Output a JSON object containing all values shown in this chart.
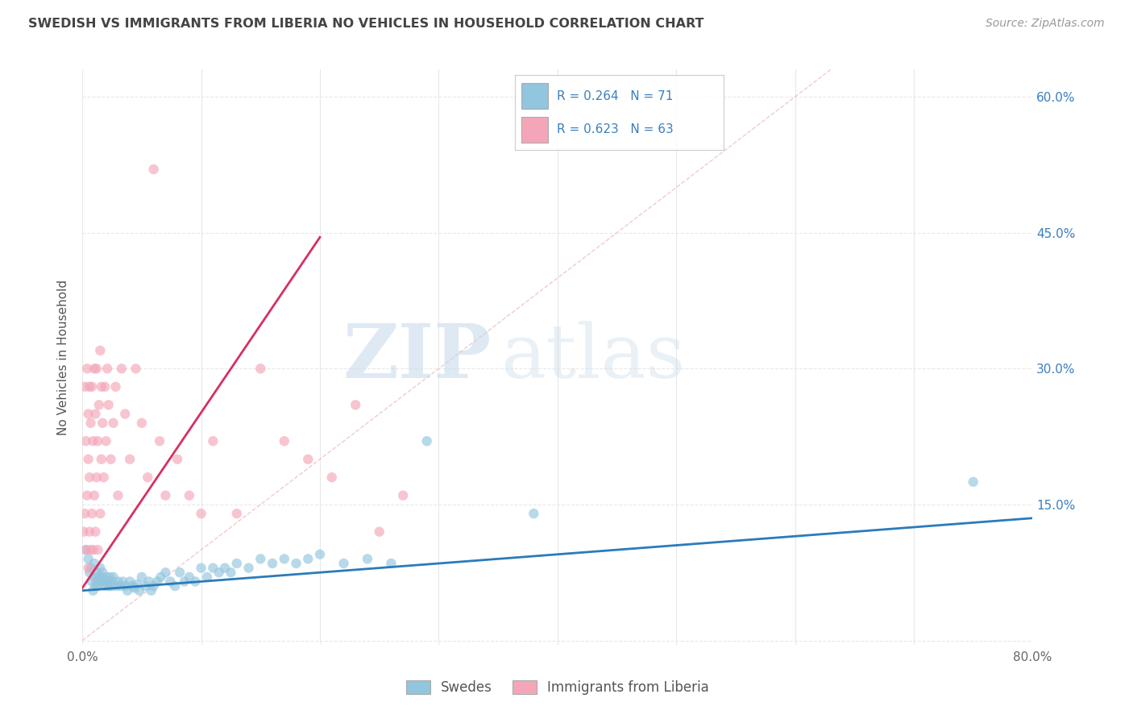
{
  "title": "SWEDISH VS IMMIGRANTS FROM LIBERIA NO VEHICLES IN HOUSEHOLD CORRELATION CHART",
  "source": "Source: ZipAtlas.com",
  "ylabel": "No Vehicles in Household",
  "xmin": 0.0,
  "xmax": 0.8,
  "ymin": -0.005,
  "ymax": 0.63,
  "xticks": [
    0.0,
    0.1,
    0.2,
    0.3,
    0.4,
    0.5,
    0.6,
    0.7,
    0.8
  ],
  "ytick_positions": [
    0.0,
    0.15,
    0.3,
    0.45,
    0.6
  ],
  "ytick_labels": [
    "",
    "15.0%",
    "30.0%",
    "45.0%",
    "60.0%"
  ],
  "blue_color": "#92c5de",
  "pink_color": "#f4a6b8",
  "trend_blue": "#2b7bba",
  "trend_pink": "#d63060",
  "refline_color": "#cccccc",
  "grid_color": "#e8e8e8",
  "R_blue": 0.264,
  "N_blue": 71,
  "R_pink": 0.623,
  "N_pink": 63,
  "legend_N_color": "#3a7fc1",
  "title_color": "#444444",
  "source_color": "#999999",
  "ylabel_color": "#555555",
  "ytick_color": "#3a7fc1",
  "blue_scatter_x": [
    0.003,
    0.005,
    0.006,
    0.007,
    0.008,
    0.009,
    0.01,
    0.01,
    0.011,
    0.012,
    0.012,
    0.013,
    0.014,
    0.015,
    0.015,
    0.016,
    0.017,
    0.018,
    0.019,
    0.02,
    0.021,
    0.022,
    0.023,
    0.024,
    0.025,
    0.026,
    0.028,
    0.03,
    0.032,
    0.034,
    0.036,
    0.038,
    0.04,
    0.042,
    0.044,
    0.046,
    0.048,
    0.05,
    0.053,
    0.056,
    0.058,
    0.06,
    0.063,
    0.066,
    0.07,
    0.074,
    0.078,
    0.082,
    0.086,
    0.09,
    0.095,
    0.1,
    0.105,
    0.11,
    0.115,
    0.12,
    0.125,
    0.13,
    0.14,
    0.15,
    0.16,
    0.17,
    0.18,
    0.19,
    0.2,
    0.22,
    0.24,
    0.26,
    0.29,
    0.38,
    0.75
  ],
  "blue_scatter_y": [
    0.1,
    0.09,
    0.075,
    0.08,
    0.065,
    0.055,
    0.085,
    0.07,
    0.06,
    0.075,
    0.065,
    0.06,
    0.07,
    0.08,
    0.065,
    0.07,
    0.075,
    0.065,
    0.06,
    0.07,
    0.065,
    0.06,
    0.07,
    0.06,
    0.065,
    0.07,
    0.06,
    0.065,
    0.06,
    0.065,
    0.06,
    0.055,
    0.065,
    0.06,
    0.058,
    0.062,
    0.055,
    0.07,
    0.06,
    0.065,
    0.055,
    0.06,
    0.065,
    0.07,
    0.075,
    0.065,
    0.06,
    0.075,
    0.065,
    0.07,
    0.065,
    0.08,
    0.07,
    0.08,
    0.075,
    0.08,
    0.075,
    0.085,
    0.08,
    0.09,
    0.085,
    0.09,
    0.085,
    0.09,
    0.095,
    0.085,
    0.09,
    0.085,
    0.22,
    0.14,
    0.175
  ],
  "pink_scatter_x": [
    0.001,
    0.002,
    0.002,
    0.003,
    0.003,
    0.004,
    0.004,
    0.005,
    0.005,
    0.005,
    0.006,
    0.006,
    0.006,
    0.007,
    0.007,
    0.008,
    0.008,
    0.009,
    0.009,
    0.01,
    0.01,
    0.011,
    0.011,
    0.012,
    0.012,
    0.013,
    0.013,
    0.014,
    0.015,
    0.015,
    0.016,
    0.016,
    0.017,
    0.018,
    0.019,
    0.02,
    0.021,
    0.022,
    0.024,
    0.026,
    0.028,
    0.03,
    0.033,
    0.036,
    0.04,
    0.045,
    0.05,
    0.055,
    0.06,
    0.065,
    0.07,
    0.08,
    0.09,
    0.1,
    0.11,
    0.13,
    0.15,
    0.17,
    0.19,
    0.21,
    0.23,
    0.25,
    0.27
  ],
  "pink_scatter_y": [
    0.12,
    0.14,
    0.28,
    0.1,
    0.22,
    0.16,
    0.3,
    0.08,
    0.2,
    0.25,
    0.12,
    0.18,
    0.28,
    0.1,
    0.24,
    0.14,
    0.28,
    0.1,
    0.22,
    0.16,
    0.3,
    0.12,
    0.25,
    0.18,
    0.3,
    0.22,
    0.1,
    0.26,
    0.14,
    0.32,
    0.2,
    0.28,
    0.24,
    0.18,
    0.28,
    0.22,
    0.3,
    0.26,
    0.2,
    0.24,
    0.28,
    0.16,
    0.3,
    0.25,
    0.2,
    0.3,
    0.24,
    0.18,
    0.52,
    0.22,
    0.16,
    0.2,
    0.16,
    0.14,
    0.22,
    0.14,
    0.3,
    0.22,
    0.2,
    0.18,
    0.26,
    0.12,
    0.16
  ],
  "watermark_zip": "ZIP",
  "watermark_atlas": "atlas",
  "legend_entries": [
    "Swedes",
    "Immigrants from Liberia"
  ],
  "blue_trend_x": [
    0.0,
    0.8
  ],
  "blue_trend_y": [
    0.055,
    0.135
  ],
  "pink_trend_x": [
    0.0,
    0.2
  ],
  "pink_trend_y": [
    0.058,
    0.445
  ],
  "refline_x": [
    0.0,
    0.63
  ],
  "refline_y": [
    0.0,
    0.63
  ]
}
